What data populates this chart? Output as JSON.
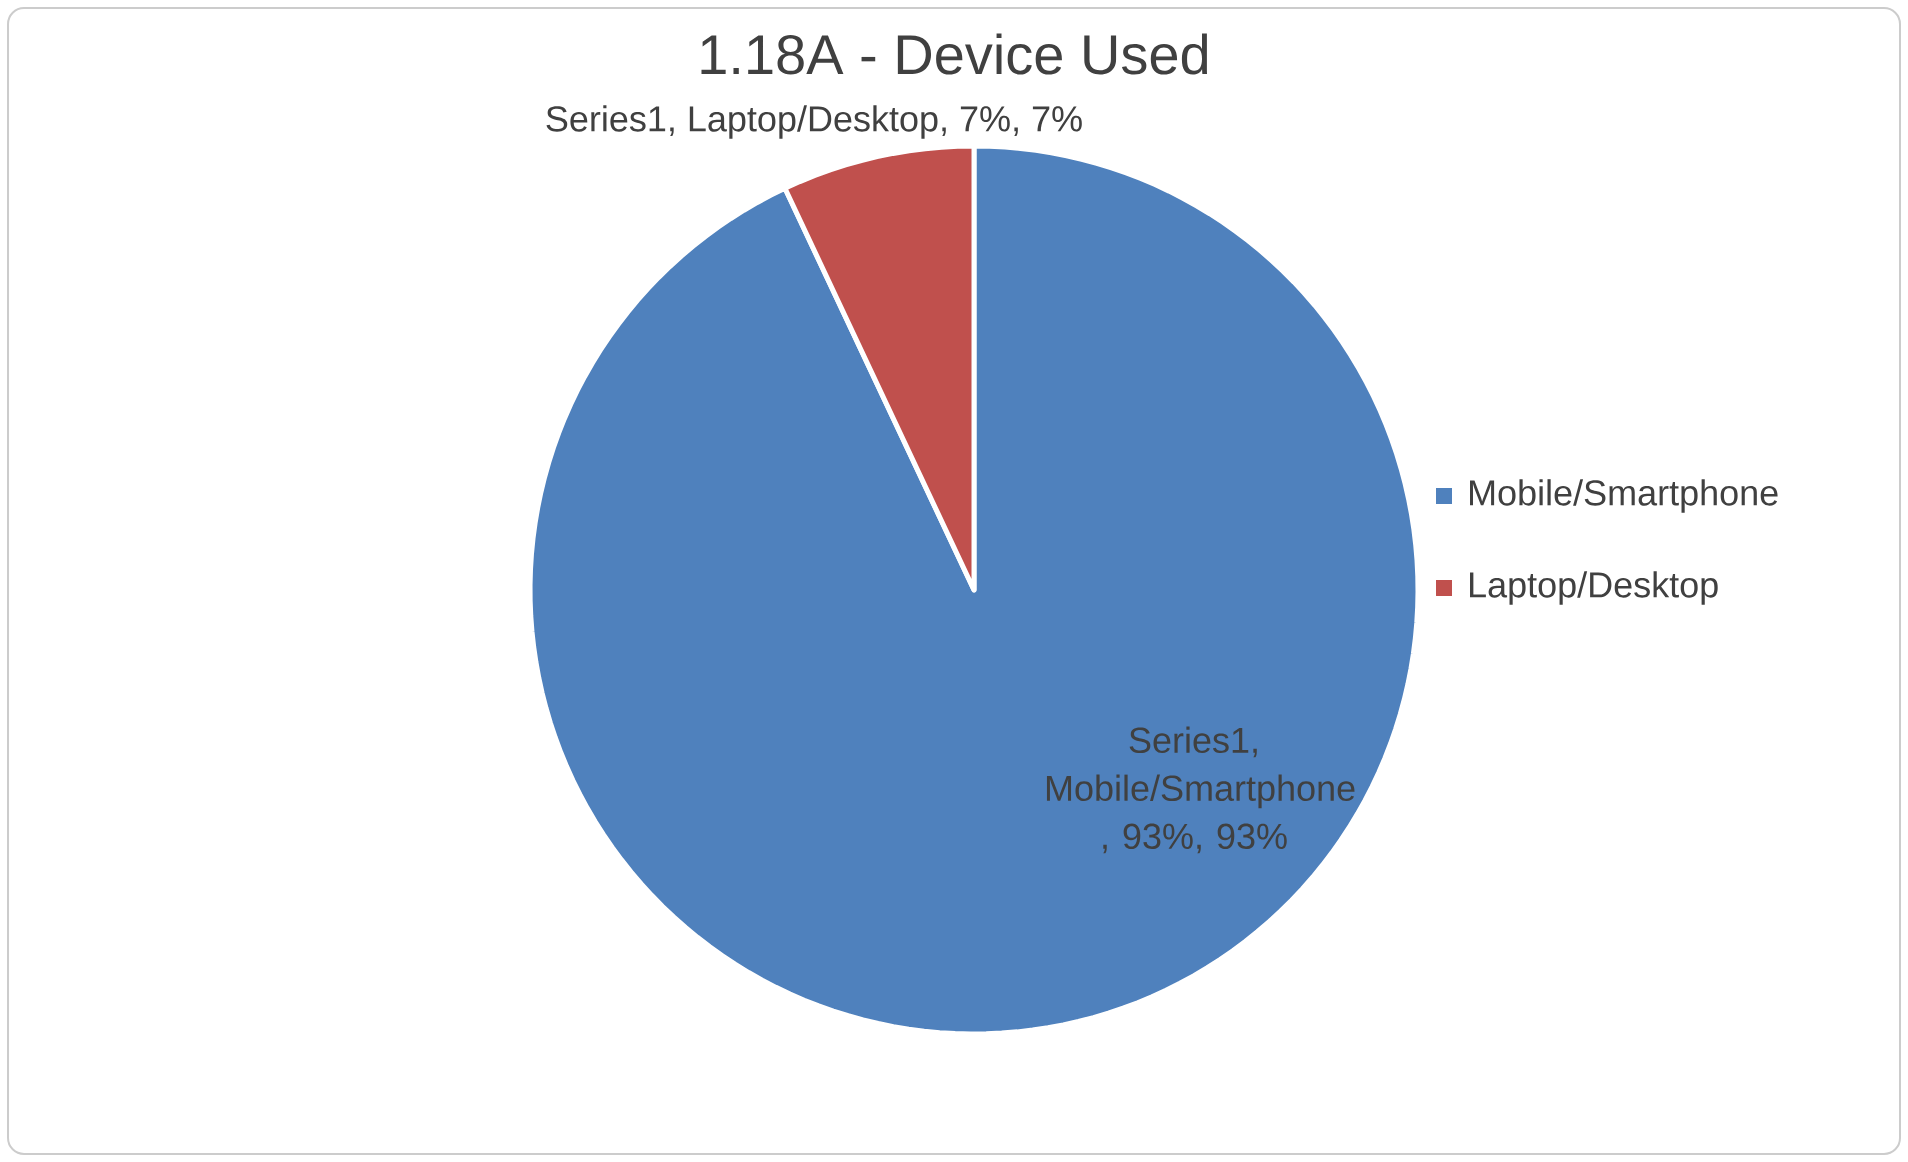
{
  "chart_data": {
    "type": "pie",
    "title": "1.18A - Device Used",
    "categories": [
      "Mobile/Smartphone",
      "Laptop/Desktop"
    ],
    "values": [
      93,
      7
    ],
    "colors": [
      "#4f81bd",
      "#c0504d"
    ],
    "value_labels": [
      "Series1, Mobile/Smartphone , 93%, 93%",
      "Series1, Laptop/Desktop, 7%, 7%"
    ],
    "legend": "right"
  }
}
